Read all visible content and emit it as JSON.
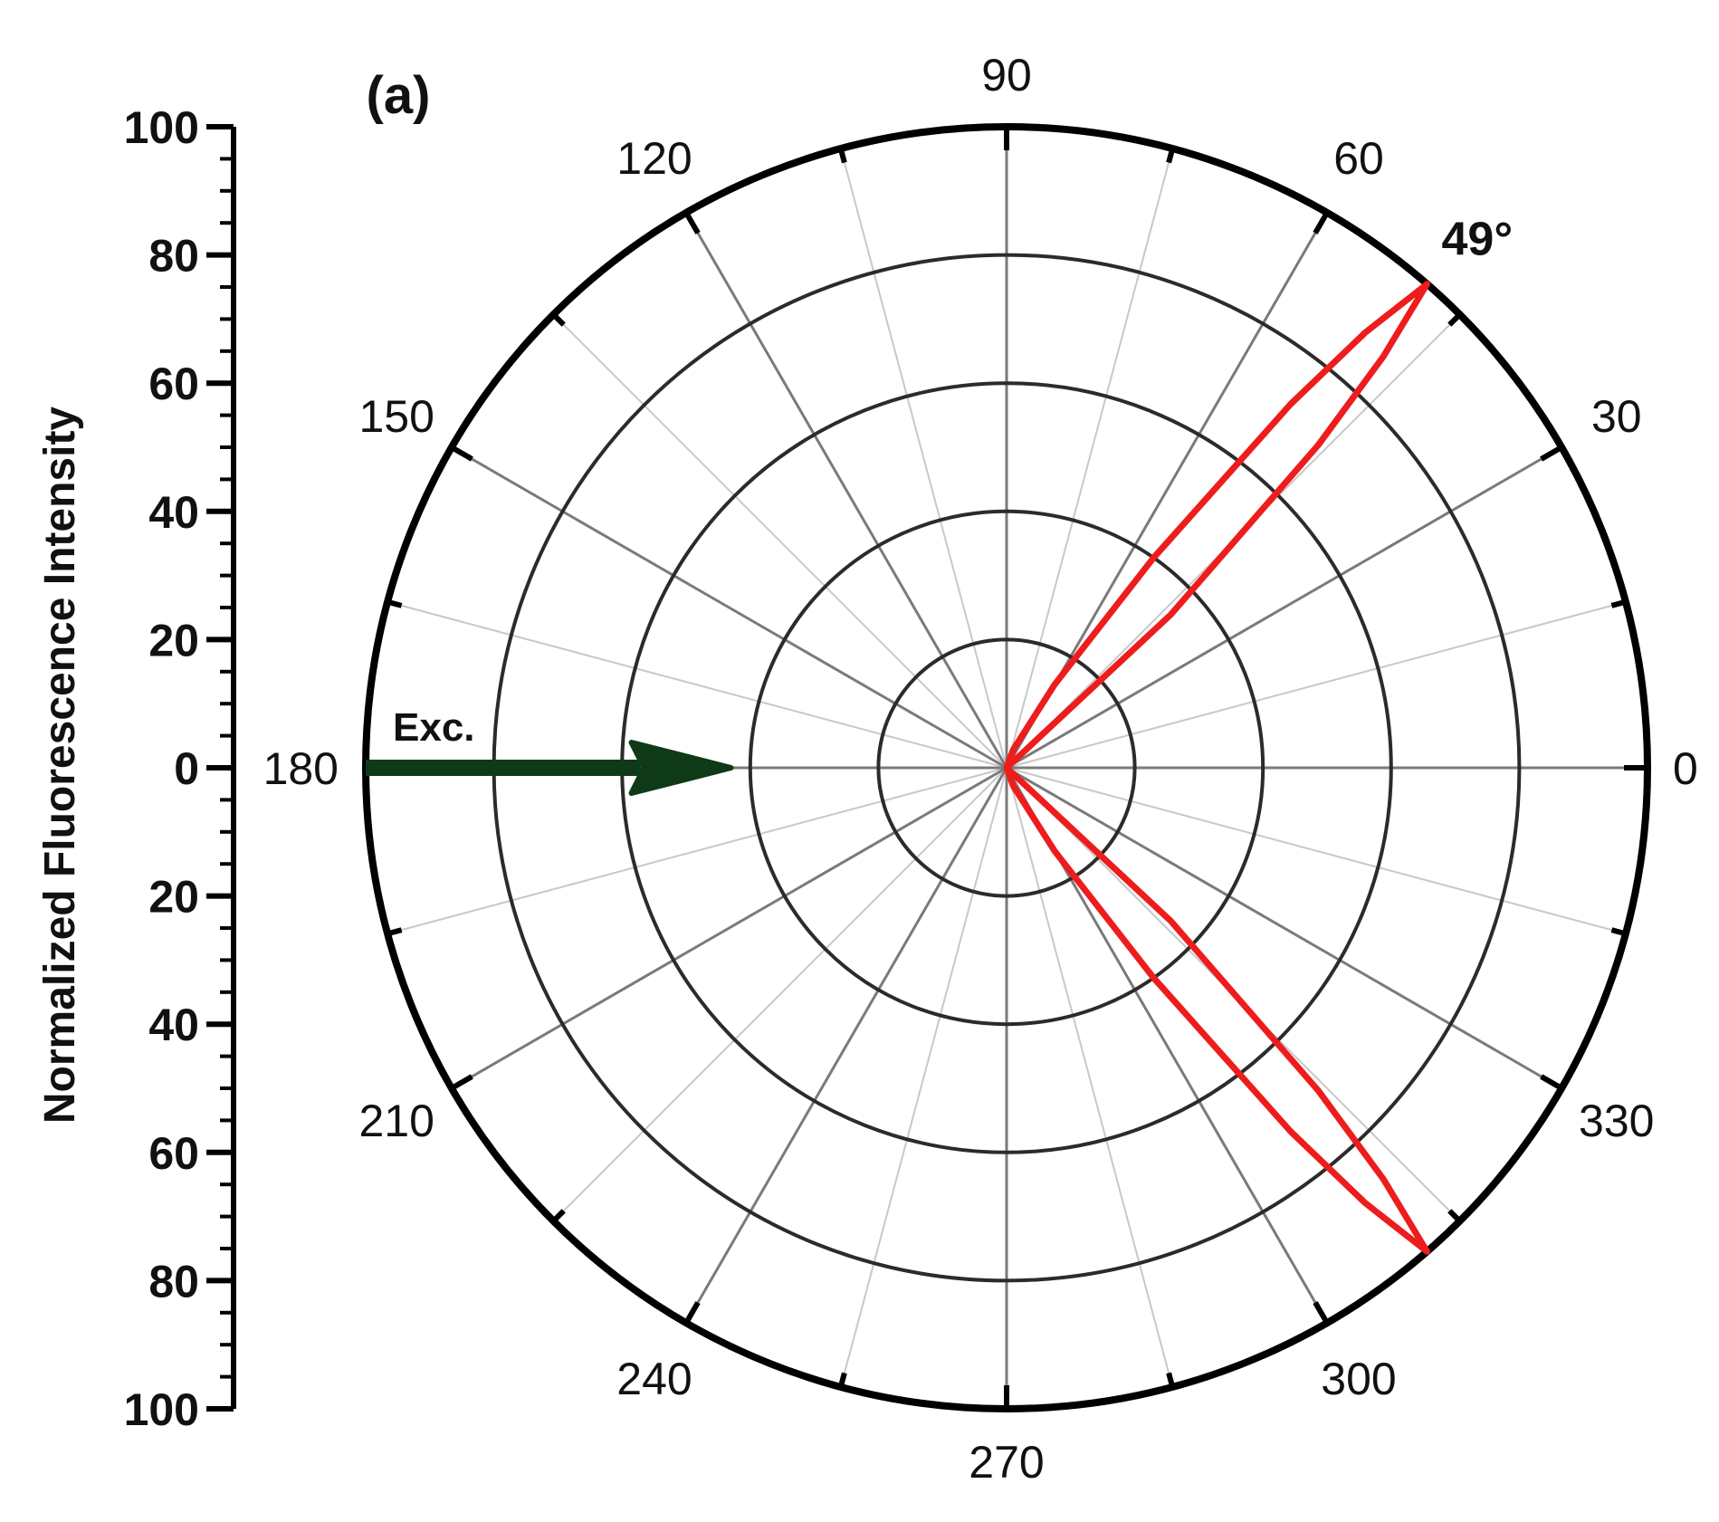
{
  "chart_data": {
    "type": "polar",
    "panel_label": "(a)",
    "ylabel": "Normalized Fluorescence Intensity",
    "radial_range": [
      0,
      100
    ],
    "radial_ticks": [
      "100",
      "80",
      "60",
      "40",
      "20",
      "0",
      "20",
      "40",
      "60",
      "80",
      "100"
    ],
    "angle_ticks": [
      {
        "deg": 0,
        "label": "0"
      },
      {
        "deg": 30,
        "label": "30"
      },
      {
        "deg": 60,
        "label": "60"
      },
      {
        "deg": 90,
        "label": "90"
      },
      {
        "deg": 120,
        "label": "120"
      },
      {
        "deg": 150,
        "label": "150"
      },
      {
        "deg": 180,
        "label": "180"
      },
      {
        "deg": 210,
        "label": "210"
      },
      {
        "deg": 240,
        "label": "240"
      },
      {
        "deg": 270,
        "label": "270"
      },
      {
        "deg": 300,
        "label": "300"
      },
      {
        "deg": 330,
        "label": "330"
      }
    ],
    "radial_grid": [
      20,
      40,
      60,
      80,
      100
    ],
    "grid": true,
    "annotations": [
      {
        "text": "49°",
        "angle": 49
      },
      {
        "text": "Exc.",
        "angle": 180
      }
    ],
    "excitation_arrow": {
      "from_r": 100,
      "to_r": 43,
      "angle": 180,
      "color": "#0f3a17"
    },
    "series": [
      {
        "color": "#ee1c1c",
        "points": [
          [
            0,
            0
          ],
          [
            40,
            0
          ],
          [
            43,
            35
          ],
          [
            46,
            70
          ],
          [
            47.5,
            87
          ],
          [
            49,
            100
          ],
          [
            50.5,
            88
          ],
          [
            52,
            72
          ],
          [
            55,
            40
          ],
          [
            60,
            15
          ],
          [
            70,
            3
          ],
          [
            90,
            0
          ],
          [
            180,
            0
          ],
          [
            270,
            0
          ],
          [
            290,
            3
          ],
          [
            300,
            15
          ],
          [
            305,
            40
          ],
          [
            308,
            72
          ],
          [
            309.5,
            88
          ],
          [
            311,
            100
          ],
          [
            312.5,
            87
          ],
          [
            314,
            70
          ],
          [
            317,
            35
          ],
          [
            320,
            0
          ],
          [
            360,
            0
          ]
        ]
      }
    ]
  }
}
